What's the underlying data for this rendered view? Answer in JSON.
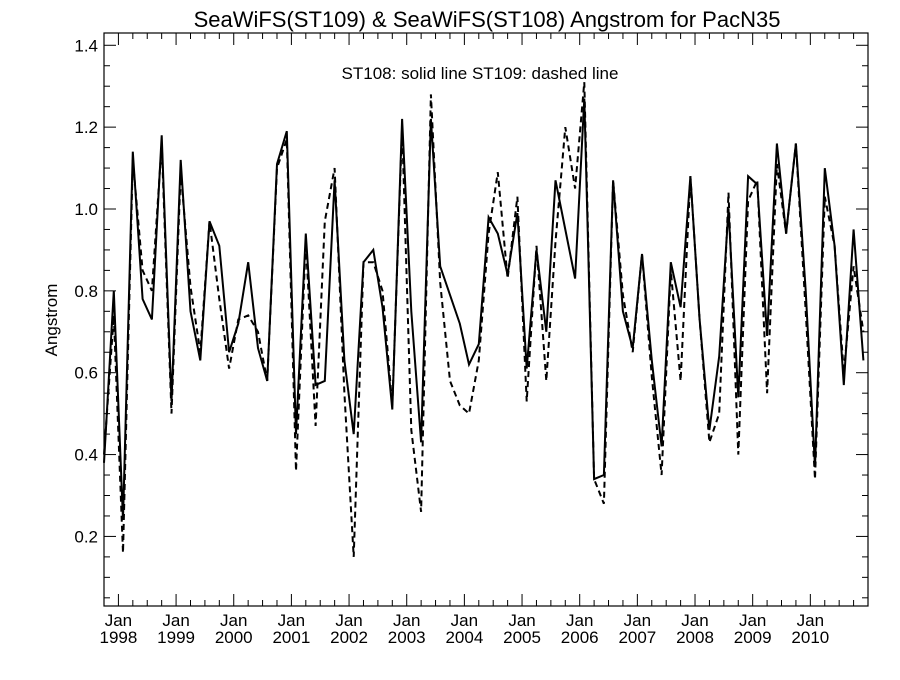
{
  "chart_data": {
    "type": "line",
    "title": "SeaWiFS(ST109) & SeaWiFS(ST108)  Angstrom for PacN35",
    "xlabel": "",
    "ylabel": "Angstrom",
    "annotation": "ST108: solid line   ST109: dashed line",
    "xlim": [
      1997.75,
      2011.0
    ],
    "ylim": [
      0.03,
      1.43
    ],
    "y_ticks": [
      0.2,
      0.4,
      0.6,
      0.8,
      1.0,
      1.2,
      1.4
    ],
    "y_tick_labels": [
      "0.2",
      "0.4",
      "0.6",
      "0.8",
      "1.0",
      "1.2",
      "1.4"
    ],
    "x_ticks": [
      1998.0,
      1999.0,
      2000.0,
      2001.0,
      2002.0,
      2003.0,
      2004.0,
      2005.0,
      2006.0,
      2007.0,
      2008.0,
      2009.0,
      2010.0
    ],
    "x_tick_labels_month": [
      "Jan",
      "Jan",
      "Jan",
      "Jan",
      "Jan",
      "Jan",
      "Jan",
      "Jan",
      "Jan",
      "Jan",
      "Jan",
      "Jan",
      "Jan"
    ],
    "x_tick_labels_year": [
      "1998",
      "1999",
      "2000",
      "2001",
      "2002",
      "2003",
      "2004",
      "2005",
      "2006",
      "2007",
      "2008",
      "2009",
      "2010"
    ],
    "grid": false,
    "legend": "none",
    "series": [
      {
        "name": "ST108",
        "style": "solid",
        "x": [
          1997.75,
          1997.92,
          1998.08,
          1998.25,
          1998.42,
          1998.58,
          1998.75,
          1998.92,
          1999.08,
          1999.25,
          1999.42,
          1999.58,
          1999.75,
          1999.92,
          2000.08,
          2000.25,
          2000.42,
          2000.58,
          2000.75,
          2000.92,
          2001.08,
          2001.25,
          2001.42,
          2001.58,
          2001.75,
          2001.92,
          2002.08,
          2002.25,
          2002.42,
          2002.58,
          2002.75,
          2002.92,
          2003.08,
          2003.25,
          2003.42,
          2003.58,
          2003.75,
          2003.92,
          2004.08,
          2004.25,
          2004.42,
          2004.58,
          2004.75,
          2004.92,
          2005.08,
          2005.25,
          2005.42,
          2005.58,
          2005.75,
          2005.92,
          2006.08,
          2006.25,
          2006.42,
          2006.58,
          2006.75,
          2006.92,
          2007.08,
          2007.25,
          2007.42,
          2007.58,
          2007.75,
          2007.92,
          2008.08,
          2008.25,
          2008.42,
          2008.58,
          2008.75,
          2008.92,
          2009.08,
          2009.25,
          2009.42,
          2009.58,
          2009.75,
          2009.92,
          2010.08,
          2010.25,
          2010.42,
          2010.58,
          2010.75,
          2010.92
        ],
        "y": [
          0.38,
          0.8,
          0.24,
          1.14,
          0.78,
          0.73,
          1.18,
          0.53,
          1.12,
          0.75,
          0.63,
          0.97,
          0.91,
          0.65,
          0.72,
          0.87,
          0.66,
          0.58,
          1.11,
          1.19,
          0.45,
          0.94,
          0.57,
          0.58,
          1.07,
          0.63,
          0.45,
          0.87,
          0.9,
          0.76,
          0.51,
          1.22,
          0.75,
          0.43,
          1.22,
          0.86,
          0.79,
          0.72,
          0.62,
          0.67,
          0.98,
          0.94,
          0.84,
          0.99,
          0.61,
          0.9,
          0.7,
          1.07,
          0.95,
          0.83,
          1.27,
          0.34,
          0.35,
          1.07,
          0.75,
          0.66,
          0.89,
          0.63,
          0.42,
          0.87,
          0.76,
          1.08,
          0.73,
          0.46,
          0.64,
          1.0,
          0.54,
          1.08,
          1.06,
          0.69,
          1.16,
          0.94,
          1.16,
          0.8,
          0.37,
          1.1,
          0.91,
          0.57,
          0.95,
          0.63
        ]
      },
      {
        "name": "ST109",
        "style": "dashed",
        "x": [
          1997.75,
          1997.92,
          1998.08,
          1998.25,
          1998.42,
          1998.58,
          1998.75,
          1998.92,
          1999.08,
          1999.25,
          1999.42,
          1999.58,
          1999.75,
          1999.92,
          2000.08,
          2000.25,
          2000.42,
          2000.58,
          2000.75,
          2000.92,
          2001.08,
          2001.25,
          2001.42,
          2001.58,
          2001.75,
          2001.92,
          2002.08,
          2002.25,
          2002.42,
          2002.58,
          2002.75,
          2002.92,
          2003.08,
          2003.25,
          2003.42,
          2003.58,
          2003.75,
          2003.92,
          2004.08,
          2004.25,
          2004.42,
          2004.58,
          2004.75,
          2004.92,
          2005.08,
          2005.25,
          2005.42,
          2005.58,
          2005.75,
          2005.92,
          2006.08,
          2006.25,
          2006.42,
          2006.58,
          2006.75,
          2006.92,
          2007.08,
          2007.25,
          2007.42,
          2007.58,
          2007.75,
          2007.92,
          2008.08,
          2008.25,
          2008.42,
          2008.58,
          2008.75,
          2008.92,
          2009.08,
          2009.25,
          2009.42,
          2009.58,
          2009.75,
          2009.92,
          2010.08,
          2010.25,
          2010.42,
          2010.58,
          2010.75,
          2010.92
        ],
        "y": [
          0.4,
          0.74,
          0.16,
          1.12,
          0.85,
          0.8,
          1.16,
          0.5,
          1.09,
          0.81,
          0.65,
          0.97,
          0.78,
          0.61,
          0.73,
          0.74,
          0.7,
          0.58,
          1.1,
          1.17,
          0.36,
          0.92,
          0.47,
          0.97,
          1.1,
          0.55,
          0.15,
          0.87,
          0.87,
          0.8,
          0.52,
          1.2,
          0.46,
          0.26,
          1.28,
          0.82,
          0.58,
          0.52,
          0.5,
          0.63,
          0.94,
          1.09,
          0.83,
          1.03,
          0.53,
          0.91,
          0.58,
          0.92,
          1.2,
          1.05,
          1.31,
          0.34,
          0.28,
          1.07,
          0.79,
          0.65,
          0.89,
          0.59,
          0.35,
          0.85,
          0.58,
          1.08,
          0.73,
          0.43,
          0.5,
          1.04,
          0.4,
          1.02,
          1.07,
          0.55,
          1.11,
          0.94,
          1.16,
          0.75,
          0.34,
          1.03,
          0.91,
          0.6,
          0.86,
          0.7
        ]
      }
    ]
  }
}
